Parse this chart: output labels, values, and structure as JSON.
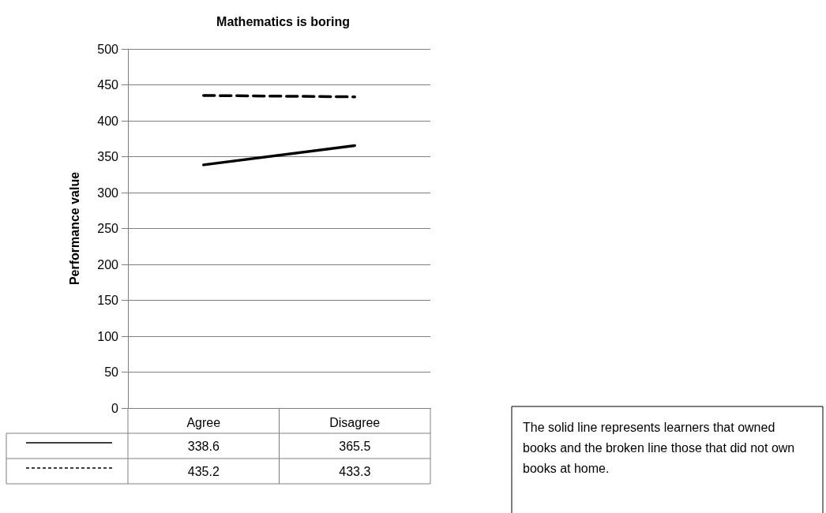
{
  "chart_data": {
    "type": "line",
    "title": "Mathematics is boring",
    "ylabel": "Performance value",
    "categories": [
      "Agree",
      "Disagree"
    ],
    "series": [
      {
        "color": "#000000",
        "line_style": "solid",
        "values": [
          338.6,
          365.5
        ]
      },
      {
        "color": "#000000",
        "line_style": "dashed",
        "values": [
          435.2,
          433.3
        ]
      }
    ],
    "ylim": [
      0,
      500
    ],
    "yticks": [
      0,
      50,
      100,
      150,
      200,
      250,
      300,
      350,
      400,
      450,
      500
    ],
    "grid": "y",
    "data_labels": true,
    "marker": "none",
    "annotations": [
      "The solid line represents learners that owned books and the broken line those that did not own books at home."
    ]
  }
}
